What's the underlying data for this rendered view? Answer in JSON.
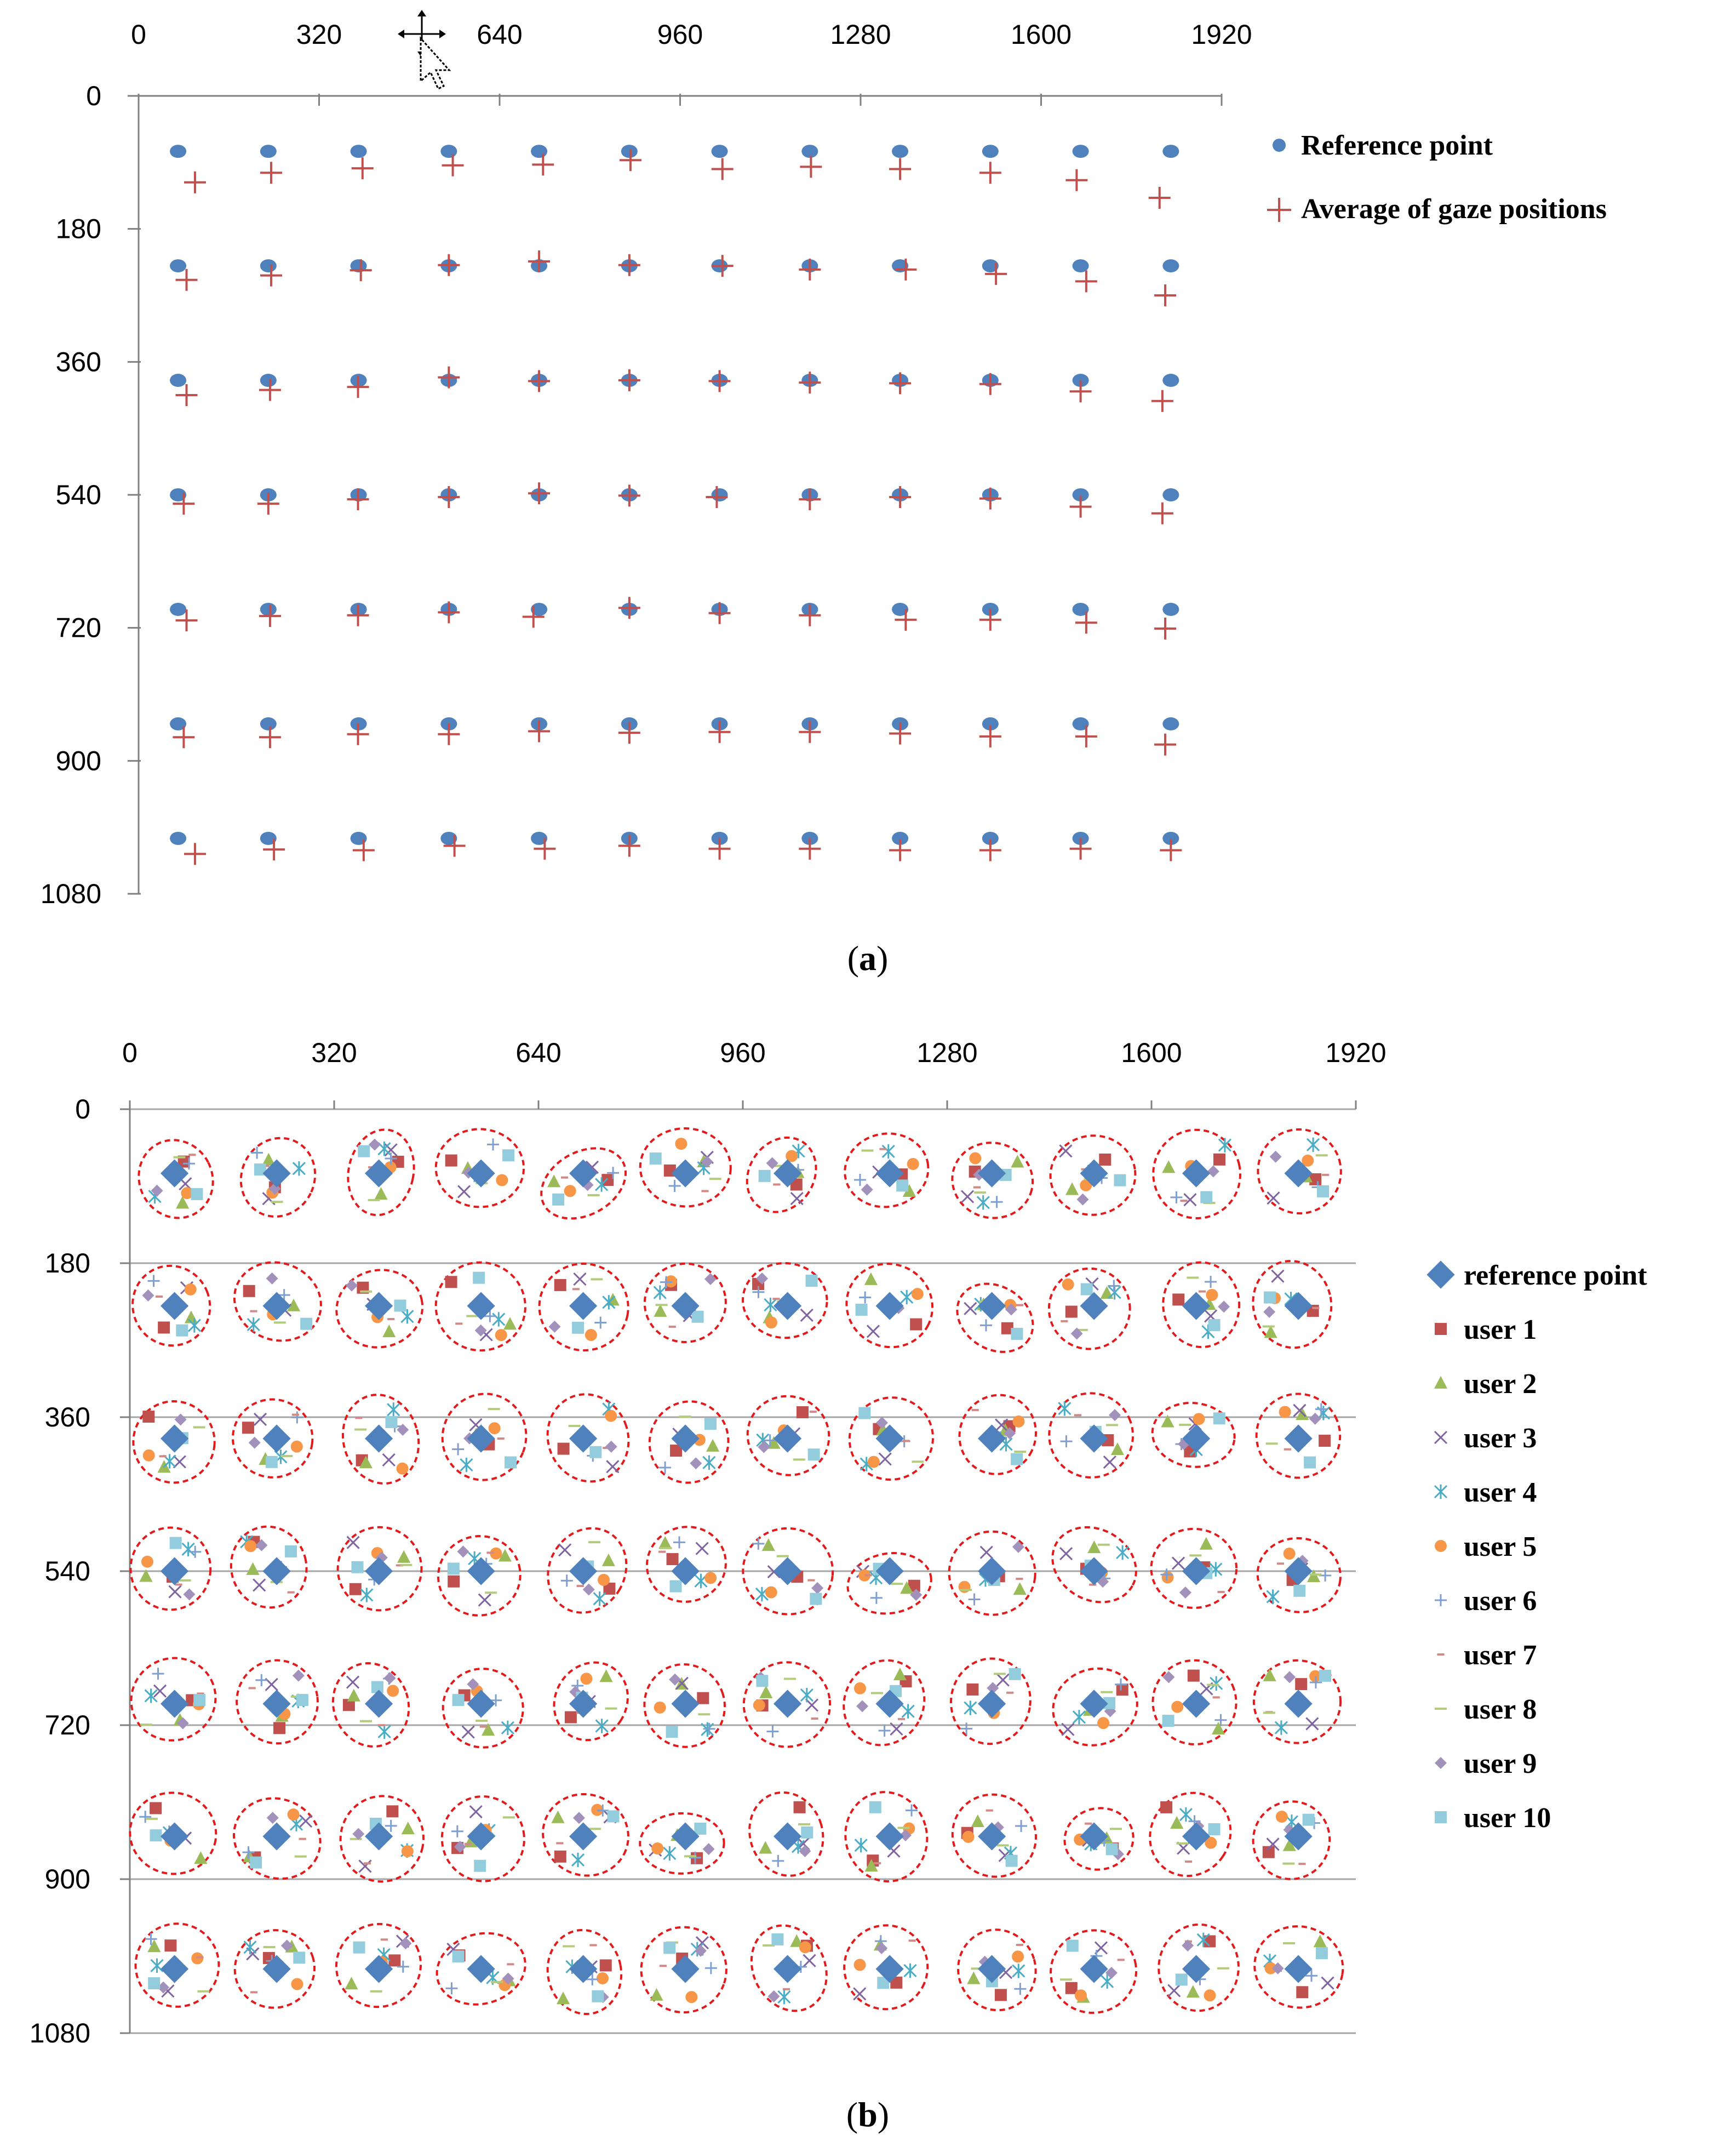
{
  "chart_data": [
    {
      "type": "scatter",
      "panel_label": "a",
      "x_ticks": [
        "0",
        "320",
        "640",
        "960",
        "1280",
        "1600",
        "1920"
      ],
      "y_ticks": [
        "0",
        "180",
        "360",
        "540",
        "720",
        "900",
        "1080"
      ],
      "xlim": [
        0,
        1920
      ],
      "ylim": [
        0,
        1080
      ],
      "y_inverted": true,
      "x_axis_position": "top",
      "legend_position": "top-right",
      "series": [
        {
          "name": "Reference point",
          "marker": "circle",
          "color": "#4f81bd"
        },
        {
          "name": "Average of gaze positions",
          "marker": "plus",
          "color": "#c0504d"
        }
      ],
      "grid_x": [
        70,
        230,
        390,
        550,
        710,
        870,
        1030,
        1190,
        1350,
        1510,
        1670,
        1830
      ],
      "grid_y": [
        75,
        230,
        385,
        540,
        695,
        850,
        1005
      ],
      "gaze_points": [
        [
          [
            100,
            117
          ],
          [
            235,
            104
          ],
          [
            397,
            98
          ],
          [
            557,
            94
          ],
          [
            717,
            93
          ],
          [
            872,
            87
          ],
          [
            1035,
            99
          ],
          [
            1192,
            96
          ],
          [
            1350,
            99
          ],
          [
            1510,
            104
          ],
          [
            1663,
            114
          ],
          [
            1810,
            138
          ]
        ],
        [
          [
            85,
            249
          ],
          [
            235,
            243
          ],
          [
            394,
            236
          ],
          [
            550,
            229
          ],
          [
            710,
            224
          ],
          [
            870,
            229
          ],
          [
            1035,
            230
          ],
          [
            1190,
            235
          ],
          [
            1360,
            235
          ],
          [
            1520,
            241
          ],
          [
            1680,
            251
          ],
          [
            1820,
            270
          ]
        ],
        [
          [
            85,
            405
          ],
          [
            233,
            398
          ],
          [
            389,
            394
          ],
          [
            550,
            381
          ],
          [
            710,
            386
          ],
          [
            870,
            385
          ],
          [
            1030,
            386
          ],
          [
            1190,
            388
          ],
          [
            1350,
            389
          ],
          [
            1510,
            390
          ],
          [
            1670,
            400
          ],
          [
            1815,
            413
          ]
        ],
        [
          [
            80,
            552
          ],
          [
            230,
            552
          ],
          [
            389,
            546
          ],
          [
            550,
            543
          ],
          [
            710,
            538
          ],
          [
            870,
            541
          ],
          [
            1025,
            543
          ],
          [
            1190,
            546
          ],
          [
            1350,
            543
          ],
          [
            1510,
            545
          ],
          [
            1670,
            556
          ],
          [
            1815,
            565
          ]
        ],
        [
          [
            85,
            710
          ],
          [
            233,
            704
          ],
          [
            389,
            703
          ],
          [
            550,
            699
          ],
          [
            700,
            705
          ],
          [
            870,
            693
          ],
          [
            1030,
            700
          ],
          [
            1190,
            703
          ],
          [
            1360,
            709
          ],
          [
            1510,
            709
          ],
          [
            1680,
            713
          ],
          [
            1820,
            721
          ]
        ],
        [
          [
            80,
            868
          ],
          [
            233,
            868
          ],
          [
            389,
            864
          ],
          [
            550,
            864
          ],
          [
            710,
            860
          ],
          [
            870,
            862
          ],
          [
            1030,
            861
          ],
          [
            1190,
            861
          ],
          [
            1350,
            863
          ],
          [
            1510,
            867
          ],
          [
            1680,
            867
          ],
          [
            1820,
            878
          ]
        ],
        [
          [
            100,
            1026
          ],
          [
            240,
            1020
          ],
          [
            399,
            1021
          ],
          [
            560,
            1015
          ],
          [
            720,
            1019
          ],
          [
            870,
            1015
          ],
          [
            1030,
            1019
          ],
          [
            1190,
            1019
          ],
          [
            1350,
            1021
          ],
          [
            1510,
            1021
          ],
          [
            1670,
            1019
          ],
          [
            1830,
            1021
          ]
        ]
      ]
    },
    {
      "type": "scatter",
      "panel_label": "b",
      "x_ticks": [
        "0",
        "320",
        "640",
        "960",
        "1280",
        "1600",
        "1920"
      ],
      "y_ticks": [
        "0",
        "180",
        "360",
        "540",
        "720",
        "900",
        "1080"
      ],
      "xlim": [
        0,
        1920
      ],
      "ylim": [
        0,
        1080
      ],
      "y_inverted": true,
      "x_axis_position": "top",
      "horizontal_gridlines": true,
      "legend_position": "right",
      "cluster_outline": "red dashed ellipse",
      "series": [
        {
          "name": "reference point",
          "marker": "diamond",
          "color": "#4f81bd"
        },
        {
          "name": "user 1",
          "marker": "square",
          "color": "#c0504d"
        },
        {
          "name": "user 2",
          "marker": "triangle",
          "color": "#9bbb59"
        },
        {
          "name": "user 3",
          "marker": "x",
          "color": "#8064a2"
        },
        {
          "name": "user 4",
          "marker": "star",
          "color": "#4bacc6"
        },
        {
          "name": "user 5",
          "marker": "circle",
          "color": "#f79646"
        },
        {
          "name": "user 6",
          "marker": "plus",
          "color": "#7f9fcf"
        },
        {
          "name": "user 7",
          "marker": "dash",
          "color": "#d28a87"
        },
        {
          "name": "user 8",
          "marker": "long-dash",
          "color": "#b3cc7c"
        },
        {
          "name": "user 9",
          "marker": "small-diamond",
          "color": "#a291bb"
        },
        {
          "name": "user 10",
          "marker": "square",
          "color": "#93cddd"
        }
      ],
      "grid_x": [
        70,
        230,
        390,
        550,
        710,
        870,
        1030,
        1190,
        1350,
        1510,
        1670,
        1830
      ],
      "grid_y": [
        75,
        230,
        385,
        540,
        695,
        850,
        1005
      ]
    }
  ],
  "captions": {
    "a": {
      "open": "(",
      "label": "a",
      "close": ")"
    },
    "b": {
      "open": "(",
      "label": "b",
      "close": ")"
    }
  },
  "colors": {
    "reference": "#4f81bd",
    "gaze": "#c0504d",
    "cluster": "#e31a1c",
    "gridline": "#a6a6a6",
    "axis": "#808080"
  },
  "icons": {
    "cursor": "move-cursor-icon"
  }
}
